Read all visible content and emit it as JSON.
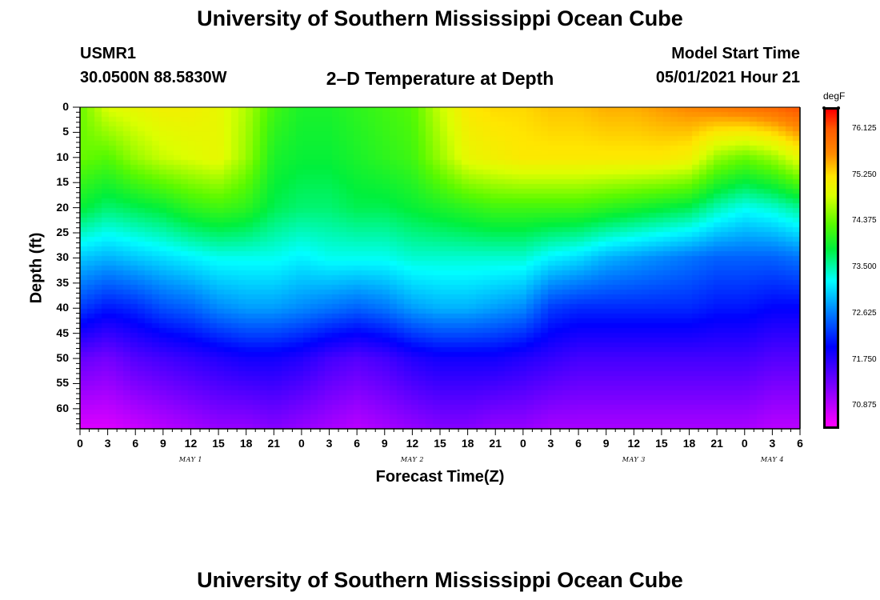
{
  "header": {
    "title_top": "University of Southern Mississippi Ocean Cube",
    "station_id": "USMR1",
    "coordinates": "30.0500N  88.5830W",
    "plot_title": "2–D Temperature at Depth",
    "model_start_label": "Model Start Time",
    "model_start_value": "05/01/2021 Hour 21",
    "title_bottom": "University of Southern Mississippi Ocean Cube"
  },
  "chart_data": {
    "type": "heatmap",
    "title": "2-D Temperature at Depth",
    "xlabel": "Forecast Time(Z)",
    "ylabel": "Depth (ft)",
    "x_range_hours": [
      0,
      78
    ],
    "y_range_ft": [
      0,
      64
    ],
    "x_tick_labels": [
      "0",
      "3",
      "6",
      "9",
      "12",
      "15",
      "18",
      "21",
      "0",
      "3",
      "6",
      "9",
      "12",
      "15",
      "18",
      "21",
      "0",
      "3",
      "6",
      "9",
      "12",
      "15",
      "18",
      "21",
      "0",
      "3",
      "6"
    ],
    "day_labels": [
      "MAY 1",
      "MAY 2",
      "MAY 3",
      "MAY 4"
    ],
    "day_label_hours": [
      12,
      36,
      60,
      75
    ],
    "y_ticks": [
      0,
      5,
      10,
      15,
      20,
      25,
      30,
      35,
      40,
      45,
      50,
      55,
      60
    ],
    "colorbar": {
      "unit": "degF",
      "min": 70.5,
      "max": 76.5,
      "tick_labels": [
        "76.125",
        "75.250",
        "74.375",
        "73.500",
        "72.625",
        "71.750",
        "70.875"
      ],
      "tick_values": [
        76.125,
        75.25,
        74.375,
        73.5,
        72.625,
        71.75,
        70.875
      ]
    },
    "temperature_profile": {
      "hours": [
        0,
        3,
        6,
        9,
        12,
        15,
        18,
        21,
        24,
        27,
        30,
        33,
        36,
        39,
        42,
        45,
        48,
        51,
        54,
        57,
        60,
        63,
        66,
        69,
        72,
        75,
        78
      ],
      "depths_ft": [
        0,
        10,
        20,
        30,
        40,
        50,
        64
      ],
      "values_degF": [
        [
          74.4,
          74.4,
          73.9,
          73.0,
          72.3,
          71.4,
          70.7
        ],
        [
          74.9,
          74.3,
          73.7,
          72.9,
          72.1,
          71.3,
          70.7
        ],
        [
          75.0,
          74.6,
          73.8,
          73.0,
          72.2,
          71.5,
          70.8
        ],
        [
          75.1,
          74.8,
          73.9,
          73.1,
          72.4,
          71.6,
          70.9
        ],
        [
          75.1,
          74.9,
          74.1,
          73.2,
          72.5,
          71.7,
          71.0
        ],
        [
          75.0,
          75.0,
          74.2,
          73.3,
          72.7,
          71.8,
          71.1
        ],
        [
          74.7,
          74.6,
          74.1,
          73.3,
          72.8,
          71.9,
          71.1
        ],
        [
          74.2,
          74.0,
          73.8,
          73.3,
          72.8,
          71.9,
          71.2
        ],
        [
          74.0,
          73.9,
          73.7,
          73.2,
          72.7,
          71.8,
          71.1
        ],
        [
          74.0,
          73.9,
          73.7,
          73.3,
          72.6,
          71.6,
          71.0
        ],
        [
          74.1,
          74.0,
          73.8,
          73.3,
          72.5,
          71.5,
          70.9
        ],
        [
          74.2,
          74.1,
          73.8,
          73.3,
          72.6,
          71.6,
          71.0
        ],
        [
          74.3,
          74.2,
          73.9,
          73.4,
          72.8,
          71.8,
          71.1
        ],
        [
          74.8,
          74.6,
          74.0,
          73.4,
          72.9,
          71.9,
          71.2
        ],
        [
          75.2,
          75.0,
          74.1,
          73.4,
          72.9,
          71.9,
          71.2
        ],
        [
          75.3,
          75.1,
          74.2,
          73.4,
          72.8,
          71.9,
          71.1
        ],
        [
          75.3,
          75.2,
          74.2,
          73.4,
          72.7,
          71.8,
          71.1
        ],
        [
          75.4,
          75.2,
          74.2,
          73.2,
          72.3,
          71.7,
          71.0
        ],
        [
          75.4,
          75.2,
          74.2,
          73.1,
          72.2,
          71.6,
          71.0
        ],
        [
          75.5,
          75.2,
          74.1,
          72.9,
          72.2,
          71.6,
          71.0
        ],
        [
          75.5,
          75.2,
          74.0,
          72.8,
          72.2,
          71.6,
          71.0
        ],
        [
          75.6,
          75.2,
          73.9,
          72.7,
          72.2,
          71.6,
          71.0
        ],
        [
          75.7,
          75.1,
          73.8,
          72.6,
          72.2,
          71.6,
          71.0
        ],
        [
          75.8,
          74.6,
          73.5,
          72.5,
          72.1,
          71.6,
          71.0
        ],
        [
          75.9,
          74.4,
          73.3,
          72.5,
          72.1,
          71.6,
          71.0
        ],
        [
          76.0,
          74.6,
          73.4,
          72.5,
          72.0,
          71.5,
          70.9
        ],
        [
          76.2,
          75.0,
          73.6,
          72.6,
          72.0,
          71.5,
          70.9
        ]
      ]
    }
  }
}
